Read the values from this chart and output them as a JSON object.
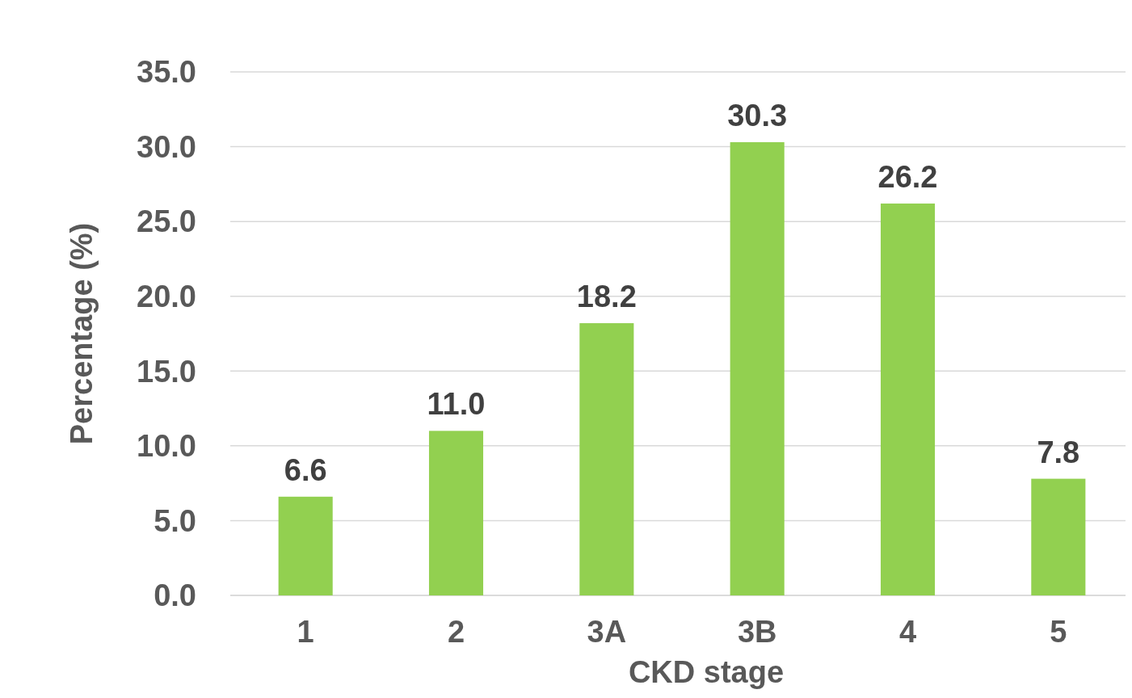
{
  "chart_data": {
    "type": "bar",
    "xlabel": "CKD stage",
    "ylabel": "Percentage (%)",
    "categories": [
      "1",
      "2",
      "3A",
      "3B",
      "4",
      "5"
    ],
    "values": [
      6.6,
      11.0,
      18.2,
      30.3,
      26.2,
      7.8
    ],
    "value_labels": [
      "6.6",
      "11.0",
      "18.2",
      "30.3",
      "26.2",
      "7.8"
    ],
    "color": "#92d050",
    "ylim": [
      0,
      35
    ],
    "yticks": [
      {
        "value": 0,
        "label": "0.0"
      },
      {
        "value": 5,
        "label": "5.0"
      },
      {
        "value": 10,
        "label": "10.0"
      },
      {
        "value": 15,
        "label": "15.0"
      },
      {
        "value": 20,
        "label": "20.0"
      },
      {
        "value": 25,
        "label": "25.0"
      },
      {
        "value": 30,
        "label": "30.0"
      },
      {
        "value": 35,
        "label": "35.0"
      }
    ],
    "grid": "y"
  }
}
